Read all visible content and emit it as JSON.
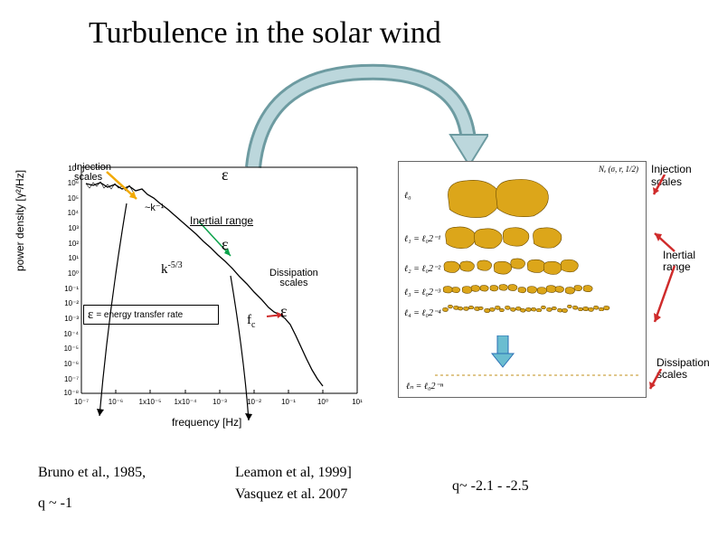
{
  "title": "Turbulence in the solar wind",
  "curve_arrow": {
    "stroke": "#6d9ba1",
    "fill_head": "#bcd7dc"
  },
  "chart": {
    "type": "line",
    "x_axis": {
      "label": "frequency [Hz]",
      "log": true,
      "ticks": [
        "10⁻⁷",
        "10⁻⁶",
        "1x10⁻⁵",
        "1x10⁻⁴",
        "10⁻³",
        "10⁻²",
        "10⁻¹",
        "10⁰",
        "10¹"
      ],
      "xlim": [
        -7,
        1
      ]
    },
    "y_axis": {
      "label": "power density [γ²/Hz]",
      "log": true,
      "ticks": [
        "10⁻⁸",
        "10⁻⁷",
        "10⁻⁶",
        "10⁻⁵",
        "10⁻⁴",
        "10⁻³",
        "10⁻²",
        "10⁻¹",
        "10⁰",
        "10¹",
        "10²",
        "10³",
        "10⁴",
        "10⁵",
        "10⁶",
        "10⁷"
      ],
      "ylim": [
        -8,
        7
      ]
    },
    "spectrum_color": "#000000",
    "grid": false,
    "annotations": {
      "injection_label": "Injection\nscales",
      "epsilon": "ε",
      "k_minus1": "~k⁻¹",
      "inertial_label": "Inertial range",
      "k_53": "k",
      "k_53_exp": "-5/3",
      "dissipation_label": "Dissipation\nscales",
      "fc": "f",
      "fc_sub": "c",
      "energy_transfer": " = energy transfer rate"
    },
    "arrow_colors": {
      "injection": "#f2a900",
      "inertial_up": "#0aa24a",
      "inertial_down": "#000000",
      "fc": "#cf2b2b"
    }
  },
  "cascade": {
    "type": "infographic",
    "header_text": "Nₑ (σ, r, 1/2)",
    "rows": [
      {
        "label": "ℓ₀",
        "count": 2,
        "size": 46,
        "color": "#dca61a"
      },
      {
        "label": "ℓ₁ = ℓ₀2⁻¹",
        "count": 4,
        "size": 28,
        "color": "#dca61a"
      },
      {
        "label": "ℓ₂ = ℓ₀2⁻²",
        "count": 8,
        "size": 16,
        "color": "#dca61a"
      },
      {
        "label": "ℓ₃ = ℓ₀2⁻³",
        "count": 16,
        "size": 9,
        "color": "#dca61a"
      },
      {
        "label": "ℓ₄ = ℓ₀2⁻⁴",
        "count": 32,
        "size": 5,
        "color": "#dca61a"
      }
    ],
    "arrow_down_colors": [
      "#6bbdd0",
      "#2a6fb5"
    ],
    "bottom_label": "ℓₙ = ℓ₀2⁻ⁿ",
    "dash_color": "#c08f1a"
  },
  "side_labels": {
    "injection": "Injection scales",
    "inertial": "Inertial\nrange",
    "dissipation": "Dissipation\nscales"
  },
  "red_arrow_color": "#cf2b2b",
  "refs": {
    "left1": "Bruno et al., 1985,",
    "left2": "q ~ -1",
    "mid1": "Leamon et al, 1999]",
    "mid2": "Vasquez et al. 2007",
    "right": "q~ -2.1 - -2.5"
  }
}
